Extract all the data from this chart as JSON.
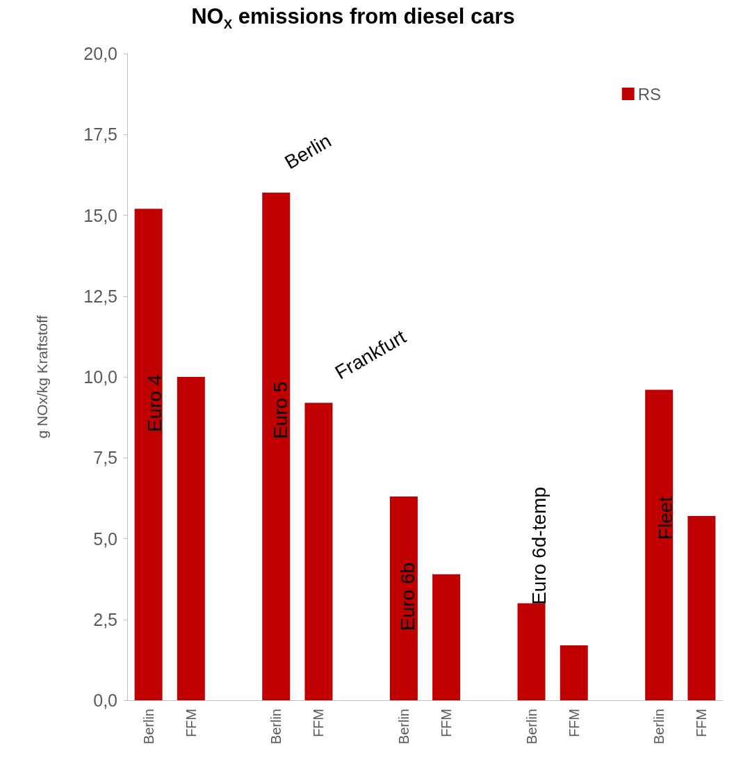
{
  "chart_data": {
    "type": "bar",
    "title": "NO$_{X}$ emissions from diesel cars",
    "ylabel": "g NOx/kg Kraftstoff",
    "categories": [
      "Berlin",
      "FFM",
      null,
      "Berlin",
      "FFM",
      null,
      "Berlin",
      "FFM",
      null,
      "Berlin",
      "FFM",
      null,
      "Berlin",
      "FFM"
    ],
    "series": [
      {
        "name": "RS",
        "color": "#c00000",
        "values": [
          15.2,
          10.0,
          null,
          15.7,
          9.2,
          null,
          6.3,
          3.9,
          null,
          3.0,
          1.7,
          null,
          9.6,
          5.7
        ]
      }
    ],
    "ylim": [
      0,
      20
    ],
    "yticks": [
      {
        "value": 0,
        "label": "0,0"
      },
      {
        "value": 2.5,
        "label": "2,5"
      },
      {
        "value": 5,
        "label": "5,0"
      },
      {
        "value": 7.5,
        "label": "7,5"
      },
      {
        "value": 10,
        "label": "10,0"
      },
      {
        "value": 12.5,
        "label": "12,5"
      },
      {
        "value": 15,
        "label": "15,0"
      },
      {
        "value": 17.5,
        "label": "17,5"
      },
      {
        "value": 20,
        "label": "20,0"
      }
    ],
    "annotations": [
      "Euro 4",
      "Euro 5",
      "Euro 6b",
      "Euro 6d-temp",
      "Fleet",
      "Berlin",
      "Frankfurt"
    ],
    "grid": false,
    "legend": "top right"
  }
}
